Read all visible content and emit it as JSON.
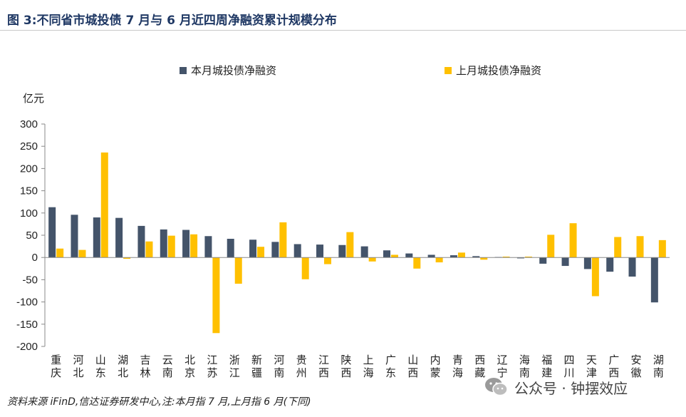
{
  "title": "图 3:不同省市城投债 7 月与 6 月近四周净融资累计规模分布",
  "footer": "资料来源 iFinD,信达证券研发中心,注:本月指 7 月,上月指 6 月(下同)",
  "watermark": {
    "text": "公众号 · 钟摆效应",
    "icon": "wechat-icon"
  },
  "colors": {
    "current": "#44546a",
    "previous": "#ffc000",
    "title": "#1f3864"
  },
  "chart_data": {
    "type": "bar",
    "title": "",
    "ylabel": "亿元",
    "ylim": [
      -200,
      300
    ],
    "yticks": [
      -200,
      -150,
      -100,
      -50,
      0,
      50,
      100,
      150,
      200,
      250,
      300
    ],
    "grid": false,
    "legend": "top",
    "categories": [
      "重庆",
      "河北",
      "山东",
      "湖北",
      "吉林",
      "云南",
      "北京",
      "江苏",
      "浙江",
      "新疆",
      "河南",
      "贵州",
      "江西",
      "陕西",
      "上海",
      "广东",
      "山西",
      "内蒙",
      "青海",
      "西藏",
      "辽宁",
      "海南",
      "福建",
      "四川",
      "天津",
      "广西",
      "安徽",
      "湖南"
    ],
    "series": [
      {
        "name": "本月城投债净融资",
        "values": [
          113,
          96,
          90,
          89,
          71,
          63,
          62,
          48,
          42,
          40,
          35,
          30,
          29,
          28,
          25,
          16,
          9,
          6,
          5,
          3,
          1,
          -2,
          -14,
          -19,
          -26,
          -32,
          -43,
          -101
        ]
      },
      {
        "name": "上月城投债净融资",
        "values": [
          20,
          17,
          236,
          -3,
          36,
          49,
          52,
          -170,
          -59,
          24,
          79,
          -49,
          -15,
          57,
          -9,
          6,
          -25,
          -11,
          11,
          -5,
          2,
          2,
          51,
          77,
          -87,
          46,
          48,
          39
        ]
      }
    ]
  }
}
